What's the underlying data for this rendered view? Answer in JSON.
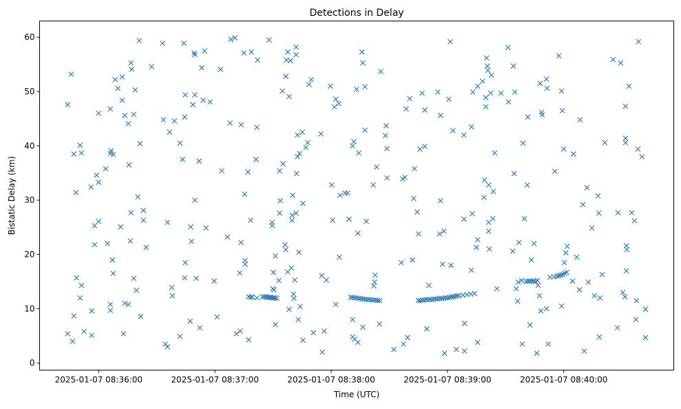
{
  "chart_data": {
    "type": "scatter",
    "title": "Detections in Delay",
    "xlabel": "Time (UTC)",
    "ylabel": "Bistatic Delay (km)",
    "x_is_seconds_after": "2025-01-07 08:35:00",
    "xlim": [
      29.5,
      356.8
    ],
    "ylim": [
      -1.3,
      63.0
    ],
    "x_ticks": [
      {
        "value": 60,
        "label": "2025-01-07 08:36:00"
      },
      {
        "value": 120,
        "label": "2025-01-07 08:37:00"
      },
      {
        "value": 180,
        "label": "2025-01-07 08:38:00"
      },
      {
        "value": 240,
        "label": "2025-01-07 08:39:00"
      },
      {
        "value": 300,
        "label": "2025-01-07 08:40:00"
      }
    ],
    "y_ticks": [
      {
        "value": 0,
        "label": "0"
      },
      {
        "value": 10,
        "label": "10"
      },
      {
        "value": 20,
        "label": "20"
      },
      {
        "value": 30,
        "label": "30"
      },
      {
        "value": 40,
        "label": "40"
      },
      {
        "value": 50,
        "label": "50"
      },
      {
        "value": 60,
        "label": "60"
      }
    ],
    "grid": false,
    "marker": "x",
    "color": "#1f77b4",
    "points": [
      [
        44.0,
        47.6
      ],
      [
        45.8,
        53.2
      ],
      [
        44.0,
        5.4
      ],
      [
        46.5,
        4.0
      ],
      [
        47.2,
        38.5
      ],
      [
        48.3,
        31.4
      ],
      [
        47.2,
        8.7
      ],
      [
        48.6,
        15.7
      ],
      [
        50.4,
        40.1
      ],
      [
        51.1,
        38.7
      ],
      [
        51.1,
        14.3
      ],
      [
        50.4,
        12.0
      ],
      [
        52.5,
        5.8
      ],
      [
        56.1,
        32.4
      ],
      [
        56.4,
        9.6
      ],
      [
        56.4,
        5.1
      ],
      [
        57.9,
        25.3
      ],
      [
        57.9,
        21.8
      ],
      [
        58.9,
        34.6
      ],
      [
        60,
        33.3
      ],
      [
        60,
        26.1
      ],
      [
        60,
        46.0
      ],
      [
        63.6,
        35.8
      ],
      [
        64.6,
        22.0
      ],
      [
        66.0,
        46.8
      ],
      [
        66.4,
        39.1
      ],
      [
        66.0,
        38.6
      ],
      [
        66.0,
        10.8
      ],
      [
        66.0,
        9.7
      ],
      [
        67.5,
        38.4
      ],
      [
        67.1,
        19.0
      ],
      [
        67.5,
        16.5
      ],
      [
        68.5,
        52.2
      ],
      [
        69.9,
        50.6
      ],
      [
        71.3,
        25.1
      ],
      [
        72.1,
        52.7
      ],
      [
        72.1,
        48.4
      ],
      [
        72.8,
        5.4
      ],
      [
        73.5,
        45.6
      ],
      [
        73.5,
        11.0
      ],
      [
        75.3,
        10.8
      ],
      [
        75.3,
        44.1
      ],
      [
        75.6,
        36.5
      ],
      [
        76.7,
        55.3
      ],
      [
        77.0,
        54.1
      ],
      [
        76.7,
        27.7
      ],
      [
        76.3,
        22.5
      ],
      [
        78.1,
        15.6
      ],
      [
        78.1,
        45.8
      ],
      [
        78.8,
        50.3
      ],
      [
        79.5,
        13.4
      ],
      [
        80.2,
        30.6
      ],
      [
        80.9,
        59.4
      ],
      [
        81.3,
        40.4
      ],
      [
        81.7,
        8.6
      ],
      [
        83.1,
        28.1
      ],
      [
        83.1,
        26.3
      ],
      [
        84.5,
        21.3
      ],
      [
        87.3,
        54.6
      ],
      [
        93.0,
        58.9
      ],
      [
        93.4,
        44.8
      ],
      [
        94.4,
        3.5
      ],
      [
        95.5,
        3.0
      ],
      [
        95.5,
        25.9
      ],
      [
        96.6,
        42.5
      ],
      [
        97.7,
        13.9
      ],
      [
        98.0,
        12.4
      ],
      [
        99.1,
        44.6
      ],
      [
        101.9,
        4.9
      ],
      [
        101.9,
        40.5
      ],
      [
        103.3,
        37.5
      ],
      [
        104.0,
        58.9
      ],
      [
        104.4,
        45.3
      ],
      [
        104.4,
        15.7
      ],
      [
        104.7,
        18.5
      ],
      [
        104.7,
        49.4
      ],
      [
        107.2,
        7.7
      ],
      [
        107.5,
        25.1
      ],
      [
        107.9,
        22.4
      ],
      [
        108.6,
        47.6
      ],
      [
        109.3,
        57.1
      ],
      [
        109.6,
        49.4
      ],
      [
        109.6,
        56.8
      ],
      [
        109.6,
        30.0
      ],
      [
        110.4,
        15.6
      ],
      [
        111.8,
        37.2
      ],
      [
        112.2,
        6.5
      ],
      [
        113.2,
        54.4
      ],
      [
        113.9,
        48.4
      ],
      [
        114.7,
        57.5
      ],
      [
        115.4,
        24.9
      ],
      [
        117.5,
        48.1
      ],
      [
        119.6,
        15.1
      ],
      [
        121.1,
        8.5
      ],
      [
        122.8,
        54.1
      ],
      [
        123.5,
        35.4
      ],
      [
        126.4,
        23.2
      ],
      [
        127.8,
        44.2
      ],
      [
        128.2,
        59.6
      ],
      [
        130.3,
        59.9
      ],
      [
        131.0,
        5.4
      ],
      [
        133.1,
        5.9
      ],
      [
        132.8,
        16.6
      ],
      [
        133.5,
        22.2
      ],
      [
        133.5,
        43.9
      ],
      [
        134.9,
        57.1
      ],
      [
        135.3,
        31.1
      ],
      [
        135.6,
        18.9
      ],
      [
        135.6,
        18.2
      ],
      [
        137.0,
        35.2
      ],
      [
        137.4,
        4.3
      ],
      [
        138.4,
        26.3
      ],
      [
        138.8,
        57.3
      ],
      [
        141.2,
        37.5
      ],
      [
        141.6,
        43.4
      ],
      [
        141.6,
        12.0
      ],
      [
        142.0,
        55.8
      ],
      [
        148.0,
        59.5
      ],
      [
        149.5,
        25.9
      ],
      [
        149.5,
        25.3
      ],
      [
        149.8,
        13.7
      ],
      [
        150.5,
        13.5
      ],
      [
        150.2,
        16.7
      ],
      [
        151.2,
        19.7
      ],
      [
        151.2,
        7.1
      ],
      [
        153.0,
        15.2
      ],
      [
        153.4,
        35.4
      ],
      [
        153.4,
        27.6
      ],
      [
        153.7,
        29.9
      ],
      [
        154.8,
        50.1
      ],
      [
        155.1,
        36.7
      ],
      [
        156.2,
        21.8
      ],
      [
        156.6,
        52.8
      ],
      [
        156.6,
        20.9
      ],
      [
        156.9,
        55.8
      ],
      [
        157.6,
        57.3
      ],
      [
        157.6,
        16.8
      ],
      [
        158.3,
        49.1
      ],
      [
        158.3,
        9.9
      ],
      [
        159.0,
        55.7
      ],
      [
        159.4,
        17.5
      ],
      [
        159.8,
        27.2
      ],
      [
        159.8,
        26.3
      ],
      [
        160.1,
        30.9
      ],
      [
        160.5,
        12.7
      ],
      [
        160.8,
        11.9
      ],
      [
        161.2,
        15.3
      ],
      [
        161.9,
        27.6
      ],
      [
        161.9,
        58.2
      ],
      [
        161.9,
        56.8
      ],
      [
        162.2,
        34.9
      ],
      [
        162.6,
        38.0
      ],
      [
        163.0,
        8.0
      ],
      [
        162.6,
        42.0
      ],
      [
        163.3,
        20.4
      ],
      [
        163.7,
        38.6
      ],
      [
        164.0,
        10.4
      ],
      [
        165.1,
        42.5
      ],
      [
        165.4,
        29.4
      ],
      [
        165.4,
        4.2
      ],
      [
        166.9,
        39.7
      ],
      [
        167.9,
        40.6
      ],
      [
        168.6,
        51.3
      ],
      [
        169.7,
        52.2
      ],
      [
        170.8,
        5.6
      ],
      [
        174.7,
        42.2
      ],
      [
        175.1,
        16.1
      ],
      [
        175.4,
        2.0
      ],
      [
        176.4,
        5.9
      ],
      [
        177.5,
        15.3
      ],
      [
        179.6,
        51.0
      ],
      [
        180.3,
        32.8
      ],
      [
        180.7,
        26.3
      ],
      [
        181.7,
        47.2
      ],
      [
        182.4,
        10.8
      ],
      [
        182.4,
        48.6
      ],
      [
        183.9,
        47.8
      ],
      [
        184.2,
        19.5
      ],
      [
        184.6,
        30.9
      ],
      [
        187.1,
        31.3
      ],
      [
        188.5,
        31.3
      ],
      [
        189.2,
        26.5
      ],
      [
        191.0,
        8.0
      ],
      [
        191.0,
        4.8
      ],
      [
        191.0,
        40.0
      ],
      [
        191.7,
        40.8
      ],
      [
        192.1,
        4.4
      ],
      [
        193.1,
        50.4
      ],
      [
        193.8,
        3.8
      ],
      [
        193.8,
        23.9
      ],
      [
        194.2,
        38.7
      ],
      [
        195.9,
        57.3
      ],
      [
        196.3,
        55.3
      ],
      [
        196.3,
        6.6
      ],
      [
        197.4,
        50.9
      ],
      [
        197.4,
        42.9
      ],
      [
        198.1,
        26.1
      ],
      [
        201.7,
        32.8
      ],
      [
        202.0,
        14.2
      ],
      [
        202.4,
        14.9
      ],
      [
        202.7,
        16.2
      ],
      [
        203.4,
        36.1
      ],
      [
        204.9,
        7.2
      ],
      [
        205.6,
        53.7
      ],
      [
        208.0,
        41.9
      ],
      [
        208.4,
        43.7
      ],
      [
        208.8,
        39.5
      ],
      [
        208.8,
        34.1
      ],
      [
        212.3,
        2.5
      ],
      [
        216.2,
        18.5
      ],
      [
        216.9,
        33.9
      ],
      [
        218.0,
        34.2
      ],
      [
        217.3,
        3.5
      ],
      [
        218.7,
        46.8
      ],
      [
        219.4,
        4.7
      ],
      [
        220.5,
        48.7
      ],
      [
        221.9,
        19.0
      ],
      [
        222.6,
        30.3
      ],
      [
        223.0,
        35.8
      ],
      [
        224.4,
        27.8
      ],
      [
        225.1,
        23.8
      ],
      [
        225.8,
        39.4
      ],
      [
        226.9,
        49.7
      ],
      [
        228.3,
        39.9
      ],
      [
        228.3,
        46.6
      ],
      [
        229.3,
        6.3
      ],
      [
        230.4,
        14.3
      ],
      [
        235.0,
        49.9
      ],
      [
        236.4,
        45.6
      ],
      [
        236.4,
        29.9
      ],
      [
        236.0,
        23.8
      ],
      [
        237.5,
        18.2
      ],
      [
        238.2,
        24.3
      ],
      [
        238.5,
        1.8
      ],
      [
        240.7,
        48.6
      ],
      [
        241.4,
        59.2
      ],
      [
        241.8,
        18.0
      ],
      [
        242.8,
        42.8
      ],
      [
        244.6,
        2.5
      ],
      [
        248.5,
        26.5
      ],
      [
        248.5,
        42.0
      ],
      [
        248.8,
        2.2
      ],
      [
        248.8,
        7.3
      ],
      [
        252.4,
        43.5
      ],
      [
        252.4,
        17.1
      ],
      [
        252.8,
        27.5
      ],
      [
        253.1,
        49.9
      ],
      [
        255.6,
        51.0
      ],
      [
        254.9,
        21.3
      ],
      [
        255.6,
        22.7
      ],
      [
        255.6,
        3.8
      ],
      [
        258.1,
        51.9
      ],
      [
        258.8,
        30.5
      ],
      [
        259.1,
        33.7
      ],
      [
        259.8,
        48.9
      ],
      [
        259.8,
        47.2
      ],
      [
        260.2,
        56.2
      ],
      [
        260.6,
        54.7
      ],
      [
        260.9,
        53.9
      ],
      [
        261.3,
        32.8
      ],
      [
        261.3,
        25.9
      ],
      [
        261.3,
        24.3
      ],
      [
        261.6,
        21.0
      ],
      [
        262.3,
        49.7
      ],
      [
        262.7,
        53.0
      ],
      [
        263.4,
        26.6
      ],
      [
        263.7,
        31.6
      ],
      [
        264.4,
        38.7
      ],
      [
        265.5,
        13.7
      ],
      [
        267.6,
        49.7
      ],
      [
        271.2,
        58.1
      ],
      [
        271.5,
        48.1
      ],
      [
        273.7,
        20.6
      ],
      [
        274.0,
        54.7
      ],
      [
        274.4,
        34.9
      ],
      [
        274.7,
        49.9
      ],
      [
        275.5,
        13.7
      ],
      [
        276.2,
        11.4
      ],
      [
        276.5,
        14.9
      ],
      [
        276.9,
        22.2
      ],
      [
        278.3,
        15.2
      ],
      [
        278.6,
        3.5
      ],
      [
        279.0,
        40.5
      ],
      [
        279.7,
        26.6
      ],
      [
        281.2,
        32.8
      ],
      [
        281.5,
        45.3
      ],
      [
        282.6,
        7.0
      ],
      [
        283.3,
        19.0
      ],
      [
        284.7,
        22.0
      ],
      [
        286.1,
        1.8
      ],
      [
        286.5,
        15.2
      ],
      [
        286.8,
        14.3
      ],
      [
        287.5,
        12.4
      ],
      [
        287.9,
        51.5
      ],
      [
        288.2,
        9.6
      ],
      [
        288.6,
        46.2
      ],
      [
        288.9,
        45.7
      ],
      [
        291.1,
        52.3
      ],
      [
        291.4,
        50.6
      ],
      [
        291.1,
        10.0
      ],
      [
        292.1,
        3.5
      ],
      [
        292.9,
        15.8
      ],
      [
        295.4,
        35.3
      ],
      [
        297.5,
        56.6
      ],
      [
        298.9,
        50.1
      ],
      [
        299.3,
        46.5
      ],
      [
        298.9,
        10.5
      ],
      [
        300.0,
        39.4
      ],
      [
        300.3,
        18.5
      ],
      [
        301.1,
        20.3
      ],
      [
        301.8,
        21.5
      ],
      [
        304.6,
        15.1
      ],
      [
        305.0,
        38.5
      ],
      [
        306.7,
        19.5
      ],
      [
        308.1,
        13.5
      ],
      [
        308.5,
        44.8
      ],
      [
        309.9,
        29.2
      ],
      [
        310.6,
        2.2
      ],
      [
        312.0,
        32.3
      ],
      [
        312.7,
        14.9
      ],
      [
        314.5,
        24.9
      ],
      [
        315.9,
        12.4
      ],
      [
        317.7,
        30.8
      ],
      [
        318.1,
        27.6
      ],
      [
        318.4,
        4.8
      ],
      [
        318.8,
        12.0
      ],
      [
        319.8,
        16.3
      ],
      [
        321.2,
        40.6
      ],
      [
        325.5,
        55.9
      ],
      [
        327.7,
        6.5
      ],
      [
        328.0,
        27.7
      ],
      [
        329.4,
        55.3
      ],
      [
        330.5,
        13.0
      ],
      [
        331.6,
        12.2
      ],
      [
        331.9,
        41.4
      ],
      [
        331.9,
        40.6
      ],
      [
        331.9,
        47.3
      ],
      [
        332.3,
        17.0
      ],
      [
        332.3,
        21.6
      ],
      [
        332.6,
        20.9
      ],
      [
        333.7,
        51.0
      ],
      [
        335.1,
        27.7
      ],
      [
        336.5,
        26.2
      ],
      [
        337.2,
        8.0
      ],
      [
        337.6,
        11.5
      ],
      [
        338.3,
        39.4
      ],
      [
        338.6,
        59.2
      ],
      [
        340.4,
        38.0
      ],
      [
        342.2,
        4.7
      ],
      [
        342.2,
        9.9
      ],
      [
        137.4,
        12.2
      ],
      [
        138.5,
        12.1
      ],
      [
        139.2,
        12.2
      ],
      [
        144.5,
        12.2
      ],
      [
        145.5,
        12.2
      ],
      [
        146.5,
        12.2
      ],
      [
        147.2,
        12.1
      ],
      [
        148.0,
        12.1
      ],
      [
        148.8,
        12.1
      ],
      [
        149.6,
        12.0
      ],
      [
        150.3,
        12.0
      ],
      [
        151.0,
        12.0
      ],
      [
        152.0,
        11.9
      ],
      [
        190,
        12.1
      ],
      [
        191,
        12.1
      ],
      [
        192,
        12.0
      ],
      [
        193,
        12.0
      ],
      [
        194,
        11.9
      ],
      [
        195,
        11.9
      ],
      [
        196,
        11.8
      ],
      [
        197,
        11.8
      ],
      [
        198,
        11.7
      ],
      [
        199,
        11.7
      ],
      [
        200,
        11.7
      ],
      [
        201,
        11.6
      ],
      [
        202,
        11.6
      ],
      [
        203,
        11.6
      ],
      [
        204,
        11.5
      ],
      [
        205,
        11.5
      ],
      [
        225,
        11.5
      ],
      [
        226,
        11.5
      ],
      [
        227,
        11.6
      ],
      [
        228,
        11.6
      ],
      [
        229,
        11.7
      ],
      [
        230,
        11.7
      ],
      [
        231,
        11.7
      ],
      [
        232,
        11.7
      ],
      [
        233,
        11.8
      ],
      [
        234,
        11.8
      ],
      [
        235,
        11.8
      ],
      [
        236,
        11.9
      ],
      [
        237,
        11.9
      ],
      [
        238,
        11.9
      ],
      [
        239,
        12.0
      ],
      [
        240,
        12.0
      ],
      [
        241,
        12.1
      ],
      [
        242,
        12.2
      ],
      [
        243,
        12.2
      ],
      [
        244,
        12.3
      ],
      [
        245,
        12.4
      ],
      [
        246,
        12.4
      ],
      [
        248,
        12.5
      ],
      [
        250,
        12.6
      ],
      [
        252,
        12.7
      ],
      [
        254,
        12.8
      ],
      [
        280.5,
        15.0
      ],
      [
        281.5,
        15.1
      ],
      [
        282.5,
        15.1
      ],
      [
        283.5,
        15.1
      ],
      [
        284.5,
        15.1
      ],
      [
        285.5,
        15.0
      ],
      [
        295,
        15.9
      ],
      [
        296.5,
        16.0
      ],
      [
        297.5,
        16.1
      ],
      [
        298.5,
        16.2
      ],
      [
        299.5,
        16.3
      ],
      [
        300.5,
        16.5
      ],
      [
        301.5,
        16.7
      ]
    ]
  }
}
